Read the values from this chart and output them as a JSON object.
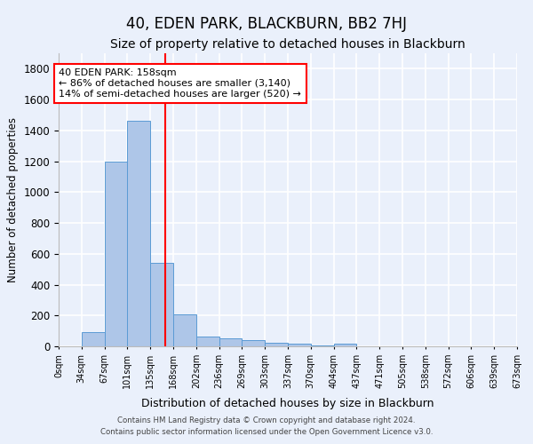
{
  "title": "40, EDEN PARK, BLACKBURN, BB2 7HJ",
  "subtitle": "Size of property relative to detached houses in Blackburn",
  "xlabel": "Distribution of detached houses by size in Blackburn",
  "ylabel": "Number of detached properties",
  "footer1": "Contains HM Land Registry data © Crown copyright and database right 2024.",
  "footer2": "Contains public sector information licensed under the Open Government Licence v3.0.",
  "bin_labels": [
    "0sqm",
    "34sqm",
    "67sqm",
    "101sqm",
    "135sqm",
    "168sqm",
    "202sqm",
    "236sqm",
    "269sqm",
    "303sqm",
    "337sqm",
    "370sqm",
    "404sqm",
    "437sqm",
    "471sqm",
    "505sqm",
    "538sqm",
    "572sqm",
    "606sqm",
    "639sqm",
    "673sqm"
  ],
  "bar_values": [
    0,
    90,
    1200,
    1460,
    540,
    205,
    65,
    50,
    38,
    25,
    20,
    8,
    15,
    0,
    0,
    0,
    0,
    0,
    0,
    0
  ],
  "bar_color": "#aec6e8",
  "bar_edge_color": "#5b9bd5",
  "red_line_x": 4.65,
  "ylim": [
    0,
    1900
  ],
  "yticks": [
    0,
    200,
    400,
    600,
    800,
    1000,
    1200,
    1400,
    1600,
    1800
  ],
  "annotation_text": "40 EDEN PARK: 158sqm\n← 86% of detached houses are smaller (3,140)\n14% of semi-detached houses are larger (520) →",
  "annotation_box_color": "white",
  "annotation_box_edge_color": "red",
  "background_color": "#eaf0fb",
  "plot_bg_color": "#eaf0fb",
  "grid_color": "white",
  "title_fontsize": 12,
  "subtitle_fontsize": 10
}
